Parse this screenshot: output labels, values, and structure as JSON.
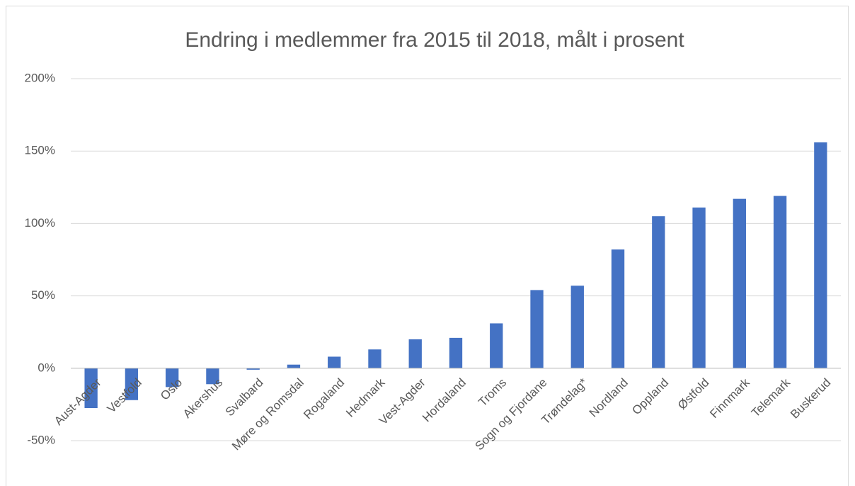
{
  "chart_data": {
    "type": "bar",
    "title": "Endring i medlemmer fra 2015 til 2018, målt i prosent",
    "categories": [
      "Aust-Agder",
      "Vestfold",
      "Oslo",
      "Akershus",
      "Svalbard",
      "Møre og Romsdal",
      "Rogaland",
      "Hedmark",
      "Vest-Agder",
      "Hordaland",
      "Troms",
      "Sogn og Fjordane",
      "Trøndelag*",
      "Nordland",
      "Oppland",
      "Østfold",
      "Finnmark",
      "Telemark",
      "Buskerud"
    ],
    "values": [
      -27.5,
      -22,
      -13,
      -11,
      -1,
      2.5,
      8,
      13,
      20,
      21,
      31,
      54,
      57,
      82,
      105,
      111,
      117,
      119,
      156
    ],
    "color": "#4472c4",
    "ylim": [
      -50,
      200
    ],
    "yticks": [
      {
        "value": -50,
        "label": "-50%"
      },
      {
        "value": 0,
        "label": "0%"
      },
      {
        "value": 50,
        "label": "50%"
      },
      {
        "value": 100,
        "label": "100%"
      },
      {
        "value": 150,
        "label": "150%"
      },
      {
        "value": 200,
        "label": "200%"
      }
    ],
    "grid": true
  }
}
